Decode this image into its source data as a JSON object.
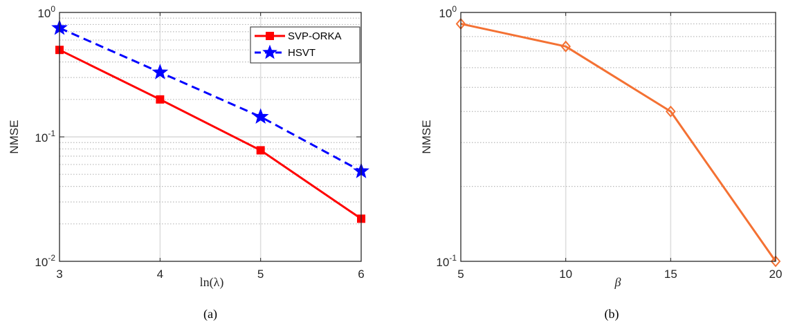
{
  "chart_data": [
    {
      "type": "line",
      "panel": "(a)",
      "xlabel": "ln(λ)",
      "ylabel": "NMSE",
      "yscale": "log",
      "xlim": [
        3,
        6
      ],
      "ylim": [
        0.01,
        1
      ],
      "x": [
        3,
        4,
        5,
        6
      ],
      "xticks": [
        "3",
        "4",
        "5",
        "6"
      ],
      "yticks": [
        {
          "value": 1,
          "base": "10",
          "exp": "0"
        },
        {
          "value": 0.1,
          "base": "10",
          "exp": "-1"
        },
        {
          "value": 0.01,
          "base": "10",
          "exp": "-2"
        }
      ],
      "grid": true,
      "legend": "top-right",
      "series": [
        {
          "name": "SVP-ORKA",
          "values": [
            0.5,
            0.2,
            0.078,
            0.022
          ],
          "color": "#ff0000",
          "marker": "square",
          "line": "solid"
        },
        {
          "name": "HSVT",
          "values": [
            0.75,
            0.33,
            0.145,
            0.053
          ],
          "color": "#0000ff",
          "marker": "star",
          "line": "dashed"
        }
      ]
    },
    {
      "type": "line",
      "panel": "(b)",
      "xlabel": "β",
      "ylabel": "NMSE",
      "yscale": "log",
      "xlim": [
        5,
        20
      ],
      "ylim": [
        0.1,
        1
      ],
      "x": [
        5,
        10,
        15,
        20
      ],
      "xticks": [
        "5",
        "10",
        "15",
        "20"
      ],
      "yticks": [
        {
          "value": 1,
          "base": "10",
          "exp": "0"
        },
        {
          "value": 0.1,
          "base": "10",
          "exp": "-1"
        }
      ],
      "grid": true,
      "series": [
        {
          "values": [
            0.9,
            0.73,
            0.4,
            0.1
          ],
          "color": "#f47133",
          "marker": "diamond",
          "line": "solid"
        }
      ]
    }
  ]
}
